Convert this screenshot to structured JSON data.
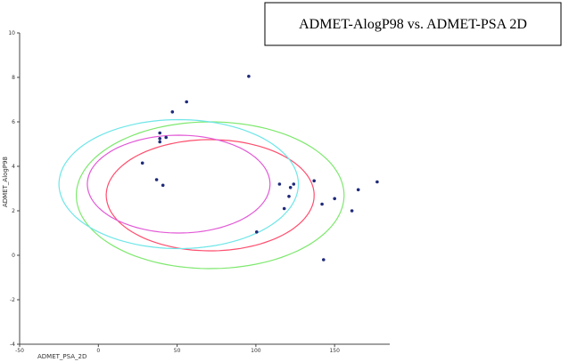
{
  "chart_data": {
    "type": "scatter",
    "title": "ADMET-AlogP98 vs. ADMET-PSA 2D",
    "xlabel": "ADMET_PSA_2D",
    "ylabel": "ADMET_AlogP98",
    "xlim": [
      -50,
      185
    ],
    "ylim": [
      -4,
      10
    ],
    "x_ticks": [
      -50,
      0,
      50,
      100,
      150
    ],
    "y_ticks": [
      -4,
      -2,
      0,
      2,
      4,
      6,
      8,
      10
    ],
    "grid": false,
    "legend": "none",
    "point_color": "#1f2a7a",
    "points": [
      {
        "x": 95.5,
        "y": 8.05
      },
      {
        "x": 56,
        "y": 6.9
      },
      {
        "x": 47,
        "y": 6.45
      },
      {
        "x": 39,
        "y": 5.5
      },
      {
        "x": 43,
        "y": 5.3
      },
      {
        "x": 39,
        "y": 5.25
      },
      {
        "x": 39,
        "y": 5.1
      },
      {
        "x": 28,
        "y": 4.15
      },
      {
        "x": 37,
        "y": 3.4
      },
      {
        "x": 41,
        "y": 3.15
      },
      {
        "x": 100.5,
        "y": 1.05
      },
      {
        "x": 115,
        "y": 3.2
      },
      {
        "x": 118,
        "y": 2.1
      },
      {
        "x": 121,
        "y": 2.65
      },
      {
        "x": 122,
        "y": 3.05
      },
      {
        "x": 124,
        "y": 3.2
      },
      {
        "x": 137,
        "y": 3.35
      },
      {
        "x": 142,
        "y": 2.3
      },
      {
        "x": 143,
        "y": -0.2
      },
      {
        "x": 150,
        "y": 2.55
      },
      {
        "x": 161,
        "y": 2.0
      },
      {
        "x": 165,
        "y": 2.95
      },
      {
        "x": 177,
        "y": 3.3
      }
    ],
    "ellipses": [
      {
        "color": "#7ee86e",
        "cx": 71,
        "cy": 2.7,
        "rx": 85,
        "ry": 3.3,
        "angle": 25
      },
      {
        "color": "#ff4d6d",
        "cx": 71,
        "cy": 2.7,
        "rx": 66,
        "ry": 2.5,
        "angle": 25
      },
      {
        "color": "#6fe6e8",
        "cx": 51,
        "cy": 3.2,
        "rx": 76,
        "ry": 2.9,
        "angle": 33
      },
      {
        "color": "#e25ad6",
        "cx": 51,
        "cy": 3.2,
        "rx": 58,
        "ry": 2.2,
        "angle": 33
      }
    ]
  }
}
